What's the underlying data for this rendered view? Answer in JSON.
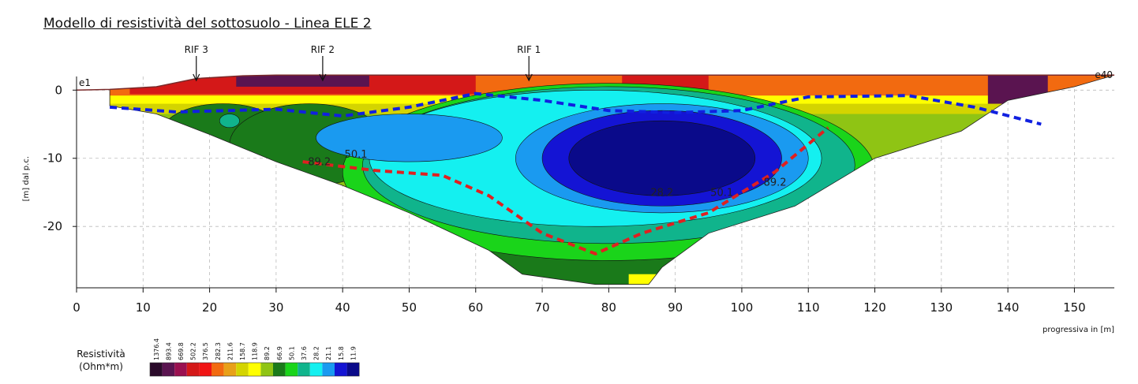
{
  "title": "Modello di resistività del sottosuolo - Linea ELE 2",
  "colors": {
    "ref_line_red": "#e02020",
    "ref_line_blue": "#1020e0",
    "topography": "#7a2a2a"
  },
  "chart_data": {
    "type": "heatmap",
    "title": "Modello di resistività del sottosuolo - Linea ELE 2",
    "xlabel": "progressiva in [m]",
    "ylabel": "[m] dal p.c.",
    "xlim": [
      0,
      156
    ],
    "ylim": [
      -29,
      2
    ],
    "x_ticks": [
      0,
      10,
      20,
      30,
      40,
      50,
      60,
      70,
      80,
      90,
      100,
      110,
      120,
      130,
      140,
      150
    ],
    "y_ticks": [
      0,
      -10,
      -20
    ],
    "grid": true,
    "electrodes": [
      {
        "label": "e1",
        "x": 0
      },
      {
        "label": "e40",
        "x": 156
      }
    ],
    "references": [
      {
        "label": "RIF 3",
        "x": 18
      },
      {
        "label": "RIF 2",
        "x": 37
      },
      {
        "label": "RIF 1",
        "x": 68
      }
    ],
    "contour_labels": [
      {
        "text": "50.1",
        "x": 42,
        "y": -9.9
      },
      {
        "text": "89.2",
        "x": 36.5,
        "y": -11
      },
      {
        "text": "28.2",
        "x": 88,
        "y": -15.5
      },
      {
        "text": "50.1",
        "x": 97,
        "y": -15.5
      },
      {
        "text": "89.2",
        "x": 105,
        "y": -14
      }
    ],
    "legend": {
      "title": "Resistività",
      "unit": "(Ohm*m)",
      "values": [
        "1376.4",
        "893.4",
        "669.8",
        "502.2",
        "376.5",
        "282.3",
        "211.6",
        "158.7",
        "118.9",
        "89.2",
        "66.9",
        "50.1",
        "37.6",
        "28.2",
        "21.1",
        "15.8",
        "11.9"
      ],
      "colors": [
        "#2a0a2a",
        "#5a1450",
        "#9a1050",
        "#d41818",
        "#f01414",
        "#f26a10",
        "#e8a018",
        "#d4d400",
        "#ffff00",
        "#8fc414",
        "#1a7a1a",
        "#1ad41a",
        "#10b48c",
        "#14f0f0",
        "#1a9af0",
        "#1414d4",
        "#0a0a8a"
      ]
    },
    "zones": [
      {
        "resistivity": 50.1,
        "x": 20,
        "y": -8
      },
      {
        "resistivity": 28.2,
        "x": 45,
        "y": -6
      },
      {
        "resistivity": 15.8,
        "x": 85,
        "y": -9
      },
      {
        "resistivity": 376.5,
        "x": 40,
        "y": -1
      },
      {
        "resistivity": 282.3,
        "x": 120,
        "y": -1
      }
    ]
  }
}
